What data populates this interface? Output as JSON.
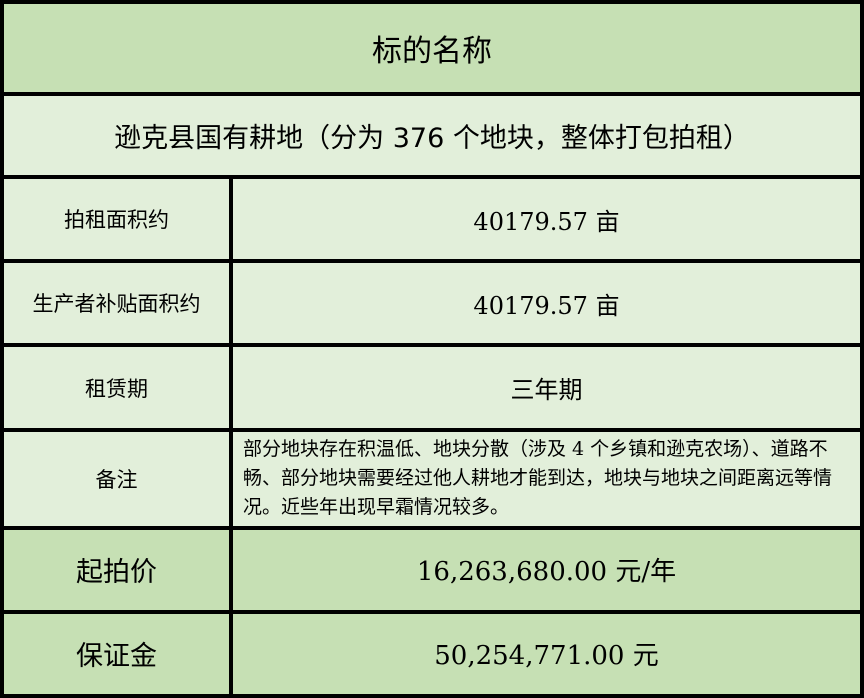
{
  "title": "标的名称",
  "subject": "逊克县国有耕地（分为 376 个地块，整体打包拍租）",
  "rows": [
    {
      "label": "拍租面积约",
      "value": "40179.57 亩"
    },
    {
      "label": "生产者补贴面积约",
      "value": "40179.57 亩"
    },
    {
      "label": "租赁期",
      "value": "三年期"
    },
    {
      "label": "备注",
      "value": "部分地块存在积温低、地块分散（涉及 4 个乡镇和逊克农场）、道路不畅、部分地块需要经过他人耕地才能到达，地块与地块之间距离远等情况。近些年出现早霜情况较多。"
    },
    {
      "label": "起拍价",
      "value": "16,263,680.00 元/年"
    },
    {
      "label": "保证金",
      "value": "50,254,771.00 元"
    }
  ],
  "colors": {
    "header_green": "#c6e0b4",
    "cell_green": "#e2efda",
    "border": "#000000"
  }
}
